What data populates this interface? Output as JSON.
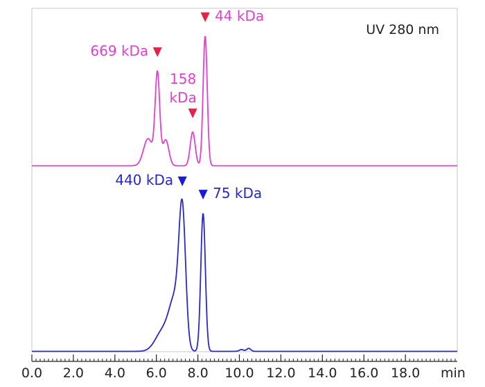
{
  "chart_data": {
    "type": "line",
    "title": "",
    "annotation_note": "UV 280 nm",
    "xlabel": "min",
    "ylabel": "",
    "xlim": [
      0,
      20.5
    ],
    "x_ticks": [
      "0.0",
      "2.0",
      "4.0",
      "6.0",
      "8.0",
      "10.0",
      "12.0",
      "14.0",
      "16.0",
      "18.0"
    ],
    "x_tick_values": [
      0,
      2,
      4,
      6,
      8,
      10,
      12,
      14,
      16,
      18
    ],
    "grid": false,
    "legend": "none",
    "series": [
      {
        "name": "standard-upper",
        "color": "#e040d0",
        "baseline": 0,
        "peaks": [
          {
            "x": 5.6,
            "h": 0.21,
            "w": 0.22
          },
          {
            "x": 6.05,
            "h": 0.7,
            "w": 0.11
          },
          {
            "x": 6.45,
            "h": 0.2,
            "w": 0.15
          },
          {
            "x": 7.75,
            "h": 0.26,
            "w": 0.12
          },
          {
            "x": 8.35,
            "h": 1.0,
            "w": 0.1
          }
        ],
        "markers": [
          {
            "x": 6.05,
            "label": "669 kDa",
            "side": "left"
          },
          {
            "x": 7.75,
            "label": "158 kDa",
            "side": "above"
          },
          {
            "x": 8.35,
            "label": "44 kDa",
            "side": "right"
          }
        ],
        "marker_color": "#e8204a"
      },
      {
        "name": "sample-lower",
        "color": "#2828c8",
        "baseline": 0,
        "peaks": [
          {
            "x": 6.3,
            "h": 0.12,
            "w": 0.35
          },
          {
            "x": 6.9,
            "h": 0.3,
            "w": 0.28
          },
          {
            "x": 7.25,
            "h": 0.78,
            "w": 0.16
          },
          {
            "x": 8.25,
            "h": 0.84,
            "w": 0.11
          },
          {
            "x": 10.1,
            "h": 0.011,
            "w": 0.1
          },
          {
            "x": 10.45,
            "h": 0.018,
            "w": 0.1
          }
        ],
        "markers": [
          {
            "x": 7.25,
            "label": "440 kDa",
            "side": "left"
          },
          {
            "x": 8.25,
            "label": "75 kDa",
            "side": "right"
          }
        ],
        "marker_color": "#1a1adc"
      }
    ]
  }
}
